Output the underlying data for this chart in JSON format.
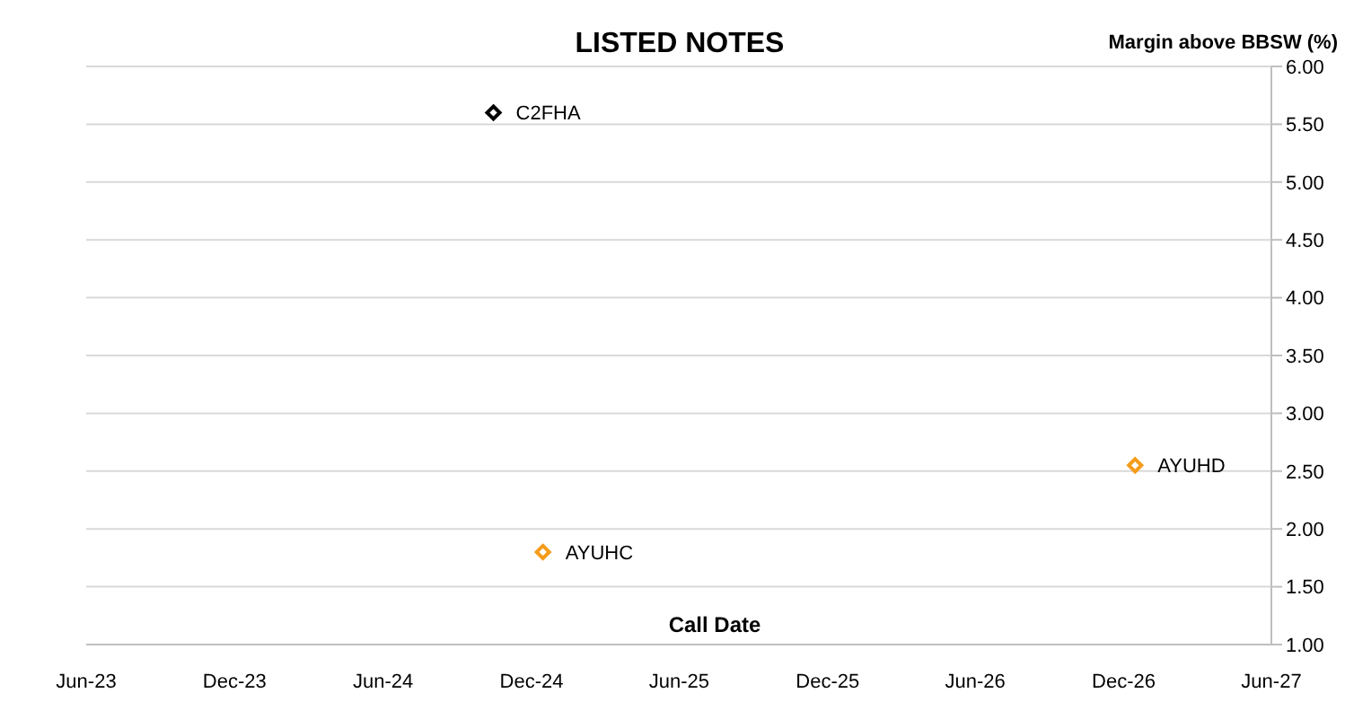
{
  "chart_data": {
    "type": "scatter",
    "title": "LISTED NOTES",
    "xlabel": "Call Date",
    "ylabel": "Margin above BBSW (%)",
    "series": [
      {
        "name": "C2FHA",
        "color": "#000000",
        "x": [
          "2024-10-15"
        ],
        "values": [
          5.6
        ]
      },
      {
        "name": "AYUHC",
        "color": "#f59c1a",
        "x": [
          "2024-12-15"
        ],
        "values": [
          1.8
        ]
      },
      {
        "name": "AYUHD",
        "color": "#f59c1a",
        "x": [
          "2026-12-15"
        ],
        "values": [
          2.55
        ]
      }
    ],
    "xlim": [
      "2023-06-01",
      "2027-06-01"
    ],
    "xticks": [
      {
        "value": "2023-06-01",
        "label": "Jun-23"
      },
      {
        "value": "2023-12-01",
        "label": "Dec-23"
      },
      {
        "value": "2024-06-01",
        "label": "Jun-24"
      },
      {
        "value": "2024-12-01",
        "label": "Dec-24"
      },
      {
        "value": "2025-06-01",
        "label": "Jun-25"
      },
      {
        "value": "2025-12-01",
        "label": "Dec-25"
      },
      {
        "value": "2026-06-01",
        "label": "Jun-26"
      },
      {
        "value": "2026-12-01",
        "label": "Dec-26"
      },
      {
        "value": "2027-06-01",
        "label": "Jun-27"
      }
    ],
    "ylim": [
      1,
      6
    ],
    "yticks": [
      {
        "value": 1,
        "label": "1.00"
      },
      {
        "value": 1.5,
        "label": "1.50"
      },
      {
        "value": 2,
        "label": "2.00"
      },
      {
        "value": 2.5,
        "label": "2.50"
      },
      {
        "value": 3,
        "label": "3.00"
      },
      {
        "value": 3.5,
        "label": "3.50"
      },
      {
        "value": 4,
        "label": "4.00"
      },
      {
        "value": 4.5,
        "label": "4.50"
      },
      {
        "value": 5,
        "label": "5.00"
      },
      {
        "value": 5.5,
        "label": "5.50"
      },
      {
        "value": 6,
        "label": "6.00"
      }
    ],
    "grid": "y",
    "marker": "diamond"
  }
}
